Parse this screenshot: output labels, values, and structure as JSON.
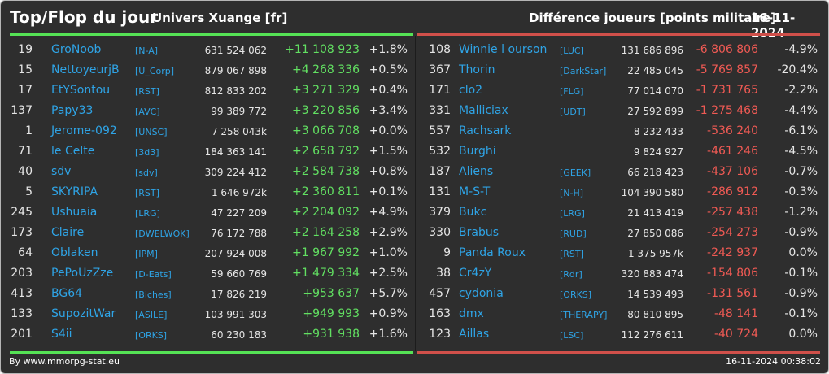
{
  "header": {
    "title": "Top/Flop du jour",
    "universe": "Univers Xuange [fr]",
    "metric": "Différence joueurs [points militaire]",
    "date": "16-11-2024"
  },
  "footer": {
    "credit": "By www.mmorpg-stat.eu",
    "timestamp": "16-11-2024 00:38:02"
  },
  "colors": {
    "positive": "#62e062",
    "negative": "#f05a54",
    "link": "#2fa4e6",
    "top_bar": "#55e255",
    "flop_bar": "#d0504a"
  },
  "top": [
    {
      "rank": "19",
      "name": "GroNoob",
      "tag": "[N-A]",
      "points": "631 524 062",
      "delta": "+11 108 923",
      "pct": "+1.8%"
    },
    {
      "rank": "15",
      "name": "NettoyeurjB",
      "tag": "[U_Corp]",
      "points": "879 067 898",
      "delta": "+4 268 336",
      "pct": "+0.5%"
    },
    {
      "rank": "17",
      "name": "EtYSontou",
      "tag": "[RST]",
      "points": "812 833 202",
      "delta": "+3 271 329",
      "pct": "+0.4%"
    },
    {
      "rank": "137",
      "name": "Papy33",
      "tag": "[AVC]",
      "points": "99 389 772",
      "delta": "+3 220 856",
      "pct": "+3.4%"
    },
    {
      "rank": "1",
      "name": "Jerome-092",
      "tag": "[UNSC]",
      "points": "7 258 043k",
      "delta": "+3 066 708",
      "pct": "+0.0%"
    },
    {
      "rank": "71",
      "name": "le Celte",
      "tag": "[3d3]",
      "points": "184 363 141",
      "delta": "+2 658 792",
      "pct": "+1.5%"
    },
    {
      "rank": "40",
      "name": "sdv",
      "tag": "[sdv]",
      "points": "309 224 412",
      "delta": "+2 584 738",
      "pct": "+0.8%"
    },
    {
      "rank": "5",
      "name": "SKYRIPA",
      "tag": "[RST]",
      "points": "1 646 972k",
      "delta": "+2 360 811",
      "pct": "+0.1%"
    },
    {
      "rank": "245",
      "name": "Ushuaia",
      "tag": "[LRG]",
      "points": "47 227 209",
      "delta": "+2 204 092",
      "pct": "+4.9%"
    },
    {
      "rank": "173",
      "name": "Claire",
      "tag": "[DWELWOK]",
      "points": "76 172 788",
      "delta": "+2 164 258",
      "pct": "+2.9%"
    },
    {
      "rank": "64",
      "name": "Oblaken",
      "tag": "[IPM]",
      "points": "207 924 008",
      "delta": "+1 967 992",
      "pct": "+1.0%"
    },
    {
      "rank": "203",
      "name": "PePoUzZze",
      "tag": "[D-Eats]",
      "points": "59 660 769",
      "delta": "+1 479 334",
      "pct": "+2.5%"
    },
    {
      "rank": "413",
      "name": "BG64",
      "tag": "[Biches]",
      "points": "17 826 219",
      "delta": "+953 637",
      "pct": "+5.7%"
    },
    {
      "rank": "133",
      "name": "SupozitWar",
      "tag": "[ASILE]",
      "points": "103 991 303",
      "delta": "+949 993",
      "pct": "+0.9%"
    },
    {
      "rank": "201",
      "name": "S4ii",
      "tag": "[ORKS]",
      "points": "60 230 183",
      "delta": "+931 938",
      "pct": "+1.6%"
    }
  ],
  "flop": [
    {
      "rank": "108",
      "name": "Winnie l ourson",
      "tag": "[LUC]",
      "points": "131 686 896",
      "delta": "-6 806 806",
      "pct": "-4.9%"
    },
    {
      "rank": "367",
      "name": "Thorin",
      "tag": "[DarkStar]",
      "points": "22 485 045",
      "delta": "-5 769 857",
      "pct": "-20.4%"
    },
    {
      "rank": "171",
      "name": "clo2",
      "tag": "[FLG]",
      "points": "77 014 070",
      "delta": "-1 731 765",
      "pct": "-2.2%"
    },
    {
      "rank": "331",
      "name": "Malliciax",
      "tag": "[UDT]",
      "points": "27 592 899",
      "delta": "-1 275 468",
      "pct": "-4.4%"
    },
    {
      "rank": "557",
      "name": "Rachsark",
      "tag": "",
      "points": "8 232 433",
      "delta": "-536 240",
      "pct": "-6.1%"
    },
    {
      "rank": "532",
      "name": "Burghi",
      "tag": "",
      "points": "9 824 927",
      "delta": "-461 246",
      "pct": "-4.5%"
    },
    {
      "rank": "187",
      "name": "Aliens",
      "tag": "[GEEK]",
      "points": "66 218 423",
      "delta": "-437 106",
      "pct": "-0.7%"
    },
    {
      "rank": "131",
      "name": "M-S-T",
      "tag": "[N-H]",
      "points": "104 390 580",
      "delta": "-286 912",
      "pct": "-0.3%"
    },
    {
      "rank": "379",
      "name": "Bukc",
      "tag": "[LRG]",
      "points": "21 413 419",
      "delta": "-257 438",
      "pct": "-1.2%"
    },
    {
      "rank": "330",
      "name": "Brabus",
      "tag": "[RUD]",
      "points": "27 850 086",
      "delta": "-254 273",
      "pct": "-0.9%"
    },
    {
      "rank": "9",
      "name": "Panda Roux",
      "tag": "[RST]",
      "points": "1 375 957k",
      "delta": "-242 937",
      "pct": "0.0%"
    },
    {
      "rank": "38",
      "name": "Cr4zY",
      "tag": "[Rdr]",
      "points": "320 883 474",
      "delta": "-154 806",
      "pct": "-0.1%"
    },
    {
      "rank": "457",
      "name": "cydonia",
      "tag": "[ORKS]",
      "points": "14 539 493",
      "delta": "-131 561",
      "pct": "-0.9%"
    },
    {
      "rank": "163",
      "name": "dmx",
      "tag": "[THERAPY]",
      "points": "80 810 895",
      "delta": "-48 141",
      "pct": "-0.1%"
    },
    {
      "rank": "123",
      "name": "Aillas",
      "tag": "[LSC]",
      "points": "112 276 611",
      "delta": "-40 724",
      "pct": "0.0%"
    }
  ]
}
